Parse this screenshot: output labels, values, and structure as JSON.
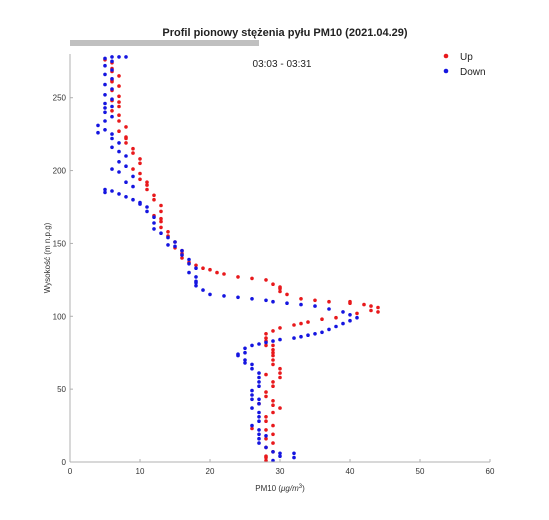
{
  "chart_data": {
    "type": "scatter",
    "title": "Profil pionowy stężenia pyłu PM10 (2021.04.29)",
    "subtitle": "03:03 - 03:31",
    "xlabel_main": "PM10 (",
    "xlabel_unit": "μg/m",
    "xlabel_sup": "3",
    "xlabel_close": ")",
    "ylabel": "Wysokość (m n.p.g)",
    "xlim": [
      0,
      60
    ],
    "ylim": [
      0,
      280
    ],
    "xticks": [
      "0",
      "10",
      "20",
      "30",
      "40",
      "50",
      "60"
    ],
    "yticks": [
      "0",
      "50",
      "100",
      "150",
      "200",
      "250"
    ],
    "grid": false,
    "legend_position": "top-right",
    "progress_fraction": 0.45,
    "series": [
      {
        "name": "Up",
        "color": "#e8191c",
        "points": [
          [
            5,
            276
          ],
          [
            6,
            274
          ],
          [
            6,
            270
          ],
          [
            6,
            268
          ],
          [
            7,
            265
          ],
          [
            6,
            262
          ],
          [
            7,
            258
          ],
          [
            6,
            255
          ],
          [
            7,
            251
          ],
          [
            6,
            248
          ],
          [
            7,
            244
          ],
          [
            6,
            241
          ],
          [
            7,
            238
          ],
          [
            7,
            234
          ],
          [
            8,
            230
          ],
          [
            7,
            227
          ],
          [
            8,
            223
          ],
          [
            8,
            219
          ],
          [
            9,
            215
          ],
          [
            9,
            212
          ],
          [
            10,
            208
          ],
          [
            10,
            205
          ],
          [
            9,
            201
          ],
          [
            10,
            198
          ],
          [
            10,
            194
          ],
          [
            11,
            190
          ],
          [
            11,
            187
          ],
          [
            12,
            183
          ],
          [
            12,
            180
          ],
          [
            13,
            176
          ],
          [
            13,
            172
          ],
          [
            12,
            169
          ],
          [
            13,
            165
          ],
          [
            13,
            161
          ],
          [
            14,
            158
          ],
          [
            14,
            155
          ],
          [
            15,
            151
          ],
          [
            15,
            147
          ],
          [
            16,
            143
          ],
          [
            16,
            140
          ],
          [
            17,
            137
          ],
          [
            18,
            135
          ],
          [
            19,
            133
          ],
          [
            20,
            132
          ],
          [
            22,
            129
          ],
          [
            24,
            127
          ],
          [
            26,
            126
          ],
          [
            28,
            125
          ],
          [
            29,
            122
          ],
          [
            30,
            119
          ],
          [
            30,
            117
          ],
          [
            31,
            115
          ],
          [
            33,
            112
          ],
          [
            35,
            111
          ],
          [
            37,
            110
          ],
          [
            40,
            109
          ],
          [
            42,
            108
          ],
          [
            43,
            107
          ],
          [
            44,
            106
          ],
          [
            43,
            104
          ],
          [
            41,
            102
          ],
          [
            38,
            99
          ],
          [
            36,
            98
          ],
          [
            34,
            96
          ],
          [
            32,
            94
          ],
          [
            30,
            92
          ],
          [
            29,
            90
          ],
          [
            28,
            88
          ],
          [
            28,
            85
          ],
          [
            28,
            83
          ],
          [
            28,
            80
          ],
          [
            29,
            77
          ],
          [
            29,
            75
          ],
          [
            29,
            73
          ],
          [
            29,
            70
          ],
          [
            29,
            67
          ],
          [
            30,
            64
          ],
          [
            30,
            61
          ],
          [
            30,
            58
          ],
          [
            29,
            55
          ],
          [
            29,
            52
          ],
          [
            28,
            48
          ],
          [
            28,
            45
          ],
          [
            29,
            42
          ],
          [
            29,
            39
          ],
          [
            30,
            37
          ],
          [
            29,
            34
          ],
          [
            28,
            31
          ],
          [
            28,
            28
          ],
          [
            29,
            25
          ],
          [
            28,
            22
          ],
          [
            29,
            19
          ],
          [
            28,
            16
          ],
          [
            29,
            13
          ],
          [
            28,
            10
          ],
          [
            29,
            7
          ],
          [
            28,
            4
          ],
          [
            28,
            1
          ],
          [
            6,
            261
          ],
          [
            7,
            247
          ],
          [
            8,
            222
          ],
          [
            11,
            192
          ],
          [
            13,
            167
          ],
          [
            16,
            145
          ],
          [
            21,
            130
          ],
          [
            30,
            120
          ],
          [
            40,
            110
          ],
          [
            44,
            103
          ],
          [
            33,
            95
          ],
          [
            29,
            80
          ],
          [
            28,
            60
          ],
          [
            27,
            40
          ],
          [
            26,
            23
          ],
          [
            28,
            3
          ]
        ]
      },
      {
        "name": "Down",
        "color": "#1515e0",
        "points": [
          [
            6,
            278
          ],
          [
            7,
            278
          ],
          [
            8,
            278
          ],
          [
            6,
            275
          ],
          [
            5,
            272
          ],
          [
            6,
            269
          ],
          [
            5,
            266
          ],
          [
            6,
            263
          ],
          [
            5,
            259
          ],
          [
            6,
            256
          ],
          [
            5,
            252
          ],
          [
            6,
            249
          ],
          [
            5,
            246
          ],
          [
            5,
            243
          ],
          [
            5,
            240
          ],
          [
            6,
            237
          ],
          [
            5,
            234
          ],
          [
            4,
            231
          ],
          [
            5,
            228
          ],
          [
            6,
            225
          ],
          [
            6,
            222
          ],
          [
            7,
            219
          ],
          [
            6,
            216
          ],
          [
            7,
            213
          ],
          [
            8,
            210
          ],
          [
            7,
            206
          ],
          [
            8,
            203
          ],
          [
            7,
            199
          ],
          [
            9,
            196
          ],
          [
            8,
            192
          ],
          [
            9,
            189
          ],
          [
            6,
            186
          ],
          [
            5,
            185
          ],
          [
            7,
            184
          ],
          [
            8,
            182
          ],
          [
            9,
            180
          ],
          [
            10,
            178
          ],
          [
            11,
            175
          ],
          [
            11,
            172
          ],
          [
            12,
            168
          ],
          [
            12,
            164
          ],
          [
            12,
            160
          ],
          [
            13,
            157
          ],
          [
            14,
            154
          ],
          [
            15,
            151
          ],
          [
            15,
            148
          ],
          [
            16,
            145
          ],
          [
            16,
            142
          ],
          [
            17,
            139
          ],
          [
            17,
            136
          ],
          [
            18,
            133
          ],
          [
            17,
            130
          ],
          [
            18,
            127
          ],
          [
            18,
            124
          ],
          [
            18,
            121
          ],
          [
            19,
            118
          ],
          [
            20,
            115
          ],
          [
            22,
            114
          ],
          [
            24,
            113
          ],
          [
            26,
            112
          ],
          [
            28,
            111
          ],
          [
            29,
            110
          ],
          [
            31,
            109
          ],
          [
            33,
            108
          ],
          [
            35,
            107
          ],
          [
            37,
            105
          ],
          [
            39,
            103
          ],
          [
            40,
            101
          ],
          [
            41,
            99
          ],
          [
            40,
            97
          ],
          [
            39,
            95
          ],
          [
            38,
            93
          ],
          [
            37,
            91
          ],
          [
            36,
            89
          ],
          [
            35,
            88
          ],
          [
            34,
            87
          ],
          [
            33,
            86
          ],
          [
            32,
            85
          ],
          [
            30,
            84
          ],
          [
            29,
            83
          ],
          [
            28,
            82
          ],
          [
            27,
            81
          ],
          [
            26,
            80
          ],
          [
            25,
            78
          ],
          [
            25,
            75
          ],
          [
            24,
            73
          ],
          [
            25,
            70
          ],
          [
            26,
            67
          ],
          [
            26,
            64
          ],
          [
            27,
            61
          ],
          [
            27,
            58
          ],
          [
            27,
            55
          ],
          [
            27,
            52
          ],
          [
            26,
            49
          ],
          [
            26,
            46
          ],
          [
            27,
            43
          ],
          [
            27,
            40
          ],
          [
            26,
            37
          ],
          [
            27,
            34
          ],
          [
            27,
            31
          ],
          [
            27,
            28
          ],
          [
            26,
            25
          ],
          [
            27,
            22
          ],
          [
            27,
            19
          ],
          [
            27,
            16
          ],
          [
            27,
            13
          ],
          [
            28,
            10
          ],
          [
            29,
            7
          ],
          [
            30,
            4
          ],
          [
            29,
            1
          ],
          [
            32,
            3
          ],
          [
            5,
            277
          ],
          [
            6,
            244
          ],
          [
            4,
            226
          ],
          [
            6,
            201
          ],
          [
            5,
            187
          ],
          [
            10,
            177
          ],
          [
            14,
            149
          ],
          [
            18,
            123
          ],
          [
            24,
            74
          ],
          [
            25,
            68
          ],
          [
            26,
            43
          ],
          [
            28,
            18
          ],
          [
            30,
            6
          ],
          [
            32,
            6
          ]
        ]
      }
    ]
  }
}
